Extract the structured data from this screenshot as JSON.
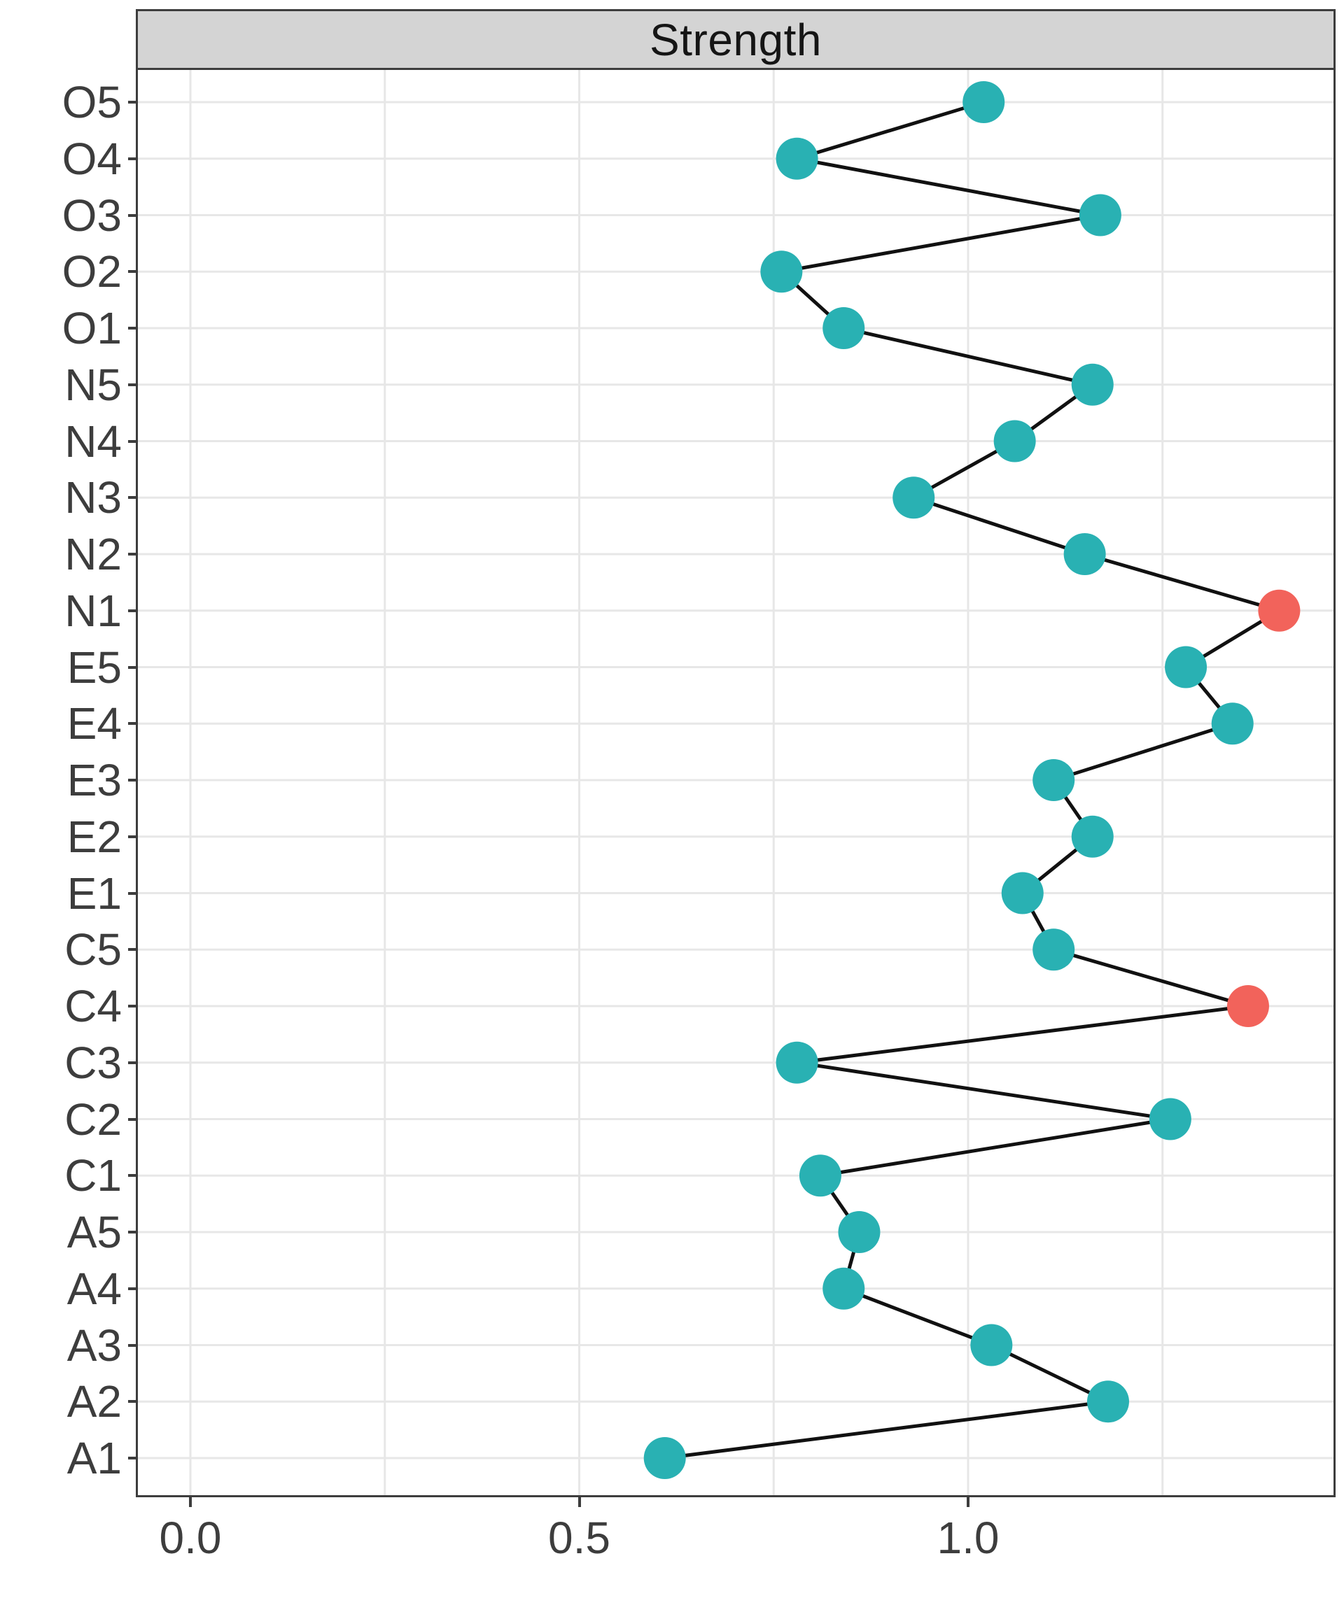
{
  "figure": {
    "strip_title": "Strength"
  },
  "chart_data": {
    "type": "scatter",
    "subtype": "horizontal-dot-plot-with-connecting-line",
    "title": "Strength",
    "xlabel": "",
    "ylabel": "",
    "xlim": [
      -0.068,
      1.47
    ],
    "grid": "on",
    "legend_position": "none",
    "x_ticks": [
      0.0,
      0.5,
      1.0
    ],
    "x_tick_labels": [
      "0.0",
      "0.5",
      "1.0"
    ],
    "x_minor_gridlines": [
      0.25,
      0.75,
      1.25
    ],
    "categories_top_to_bottom": [
      "O5",
      "O4",
      "O3",
      "O2",
      "O1",
      "N5",
      "N4",
      "N3",
      "N2",
      "N1",
      "E5",
      "E4",
      "E3",
      "E2",
      "E1",
      "C5",
      "C4",
      "C3",
      "C2",
      "C1",
      "A5",
      "A4",
      "A3",
      "A2",
      "A1"
    ],
    "values_top_to_bottom": [
      1.02,
      0.78,
      1.17,
      0.76,
      0.84,
      1.16,
      1.06,
      0.93,
      1.15,
      1.4,
      1.28,
      1.34,
      1.11,
      1.16,
      1.07,
      1.11,
      1.36,
      0.78,
      1.26,
      0.81,
      0.86,
      0.84,
      1.03,
      1.18,
      0.61
    ],
    "highlighted_categories": [
      "N1",
      "C4"
    ],
    "colors": {
      "point": "#29B1B3",
      "highlight_point": "#F2635B",
      "line": "#111111",
      "gridline": "#E7E7E7",
      "strip_fill": "#D4D4D4",
      "panel_border": "#3D3D3D",
      "axis_text": "#3D3D3D",
      "strip_text": "#151515"
    }
  }
}
